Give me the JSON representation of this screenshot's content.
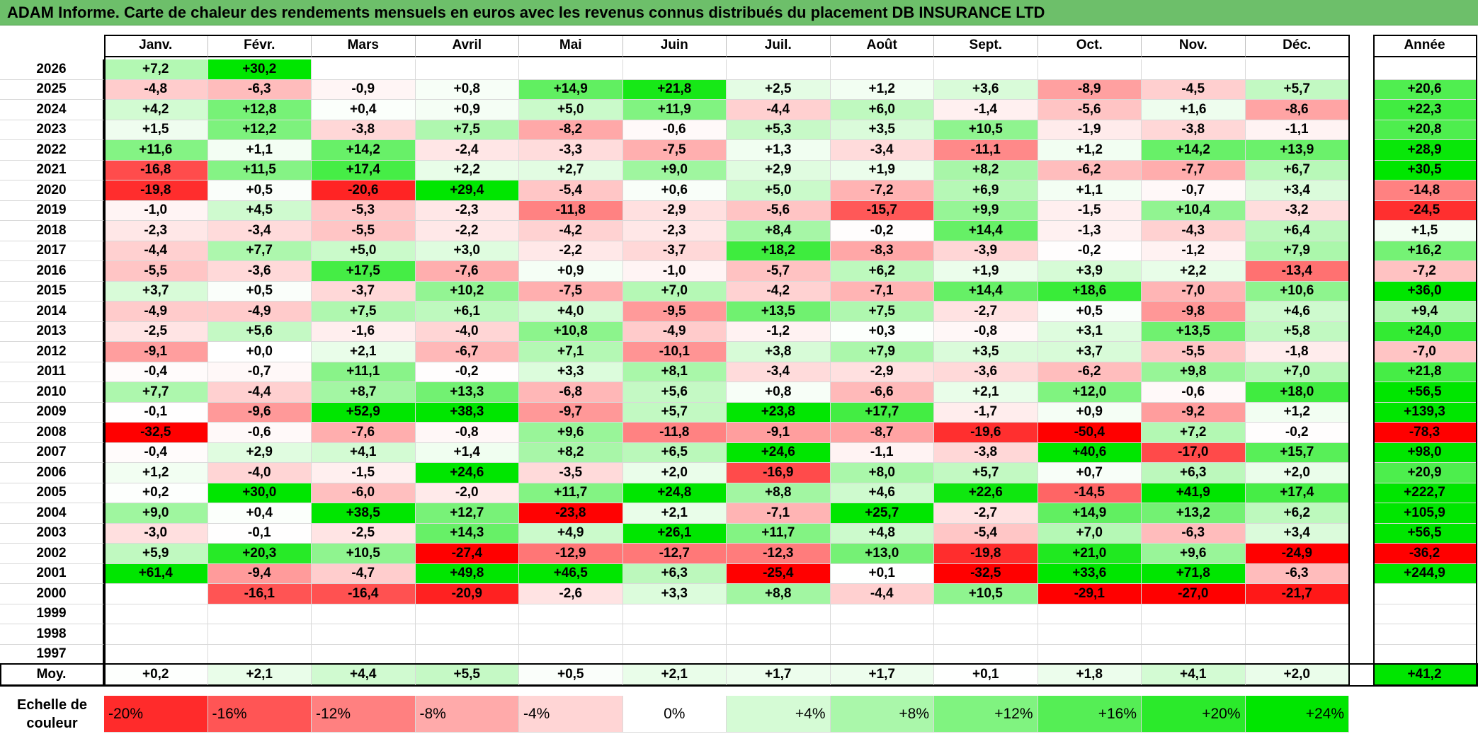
{
  "title": "ADAM Informe. Carte de chaleur des rendements mensuels en euros avec les revenus connus distribués du placement DB INSURANCE LTD",
  "chart_data": {
    "type": "heatmap",
    "months": [
      "Janv.",
      "Févr.",
      "Mars",
      "Avril",
      "Mai",
      "Juin",
      "Juil.",
      "Août",
      "Sept.",
      "Oct.",
      "Nov.",
      "Déc."
    ],
    "year_header": "Année",
    "average_label": "Moy.",
    "rows": [
      {
        "year": "2026",
        "values": [
          "+7,2",
          "+30,2",
          "",
          "",
          "",
          "",
          "",
          "",
          "",
          "",
          "",
          ""
        ],
        "annual": ""
      },
      {
        "year": "2025",
        "values": [
          "-4,8",
          "-6,3",
          "-0,9",
          "+0,8",
          "+14,9",
          "+21,8",
          "+2,5",
          "+1,2",
          "+3,6",
          "-8,9",
          "-4,5",
          "+5,7"
        ],
        "annual": "+20,6"
      },
      {
        "year": "2024",
        "values": [
          "+4,2",
          "+12,8",
          "+0,4",
          "+0,9",
          "+5,0",
          "+11,9",
          "-4,4",
          "+6,0",
          "-1,4",
          "-5,6",
          "+1,6",
          "-8,6"
        ],
        "annual": "+22,3"
      },
      {
        "year": "2023",
        "values": [
          "+1,5",
          "+12,2",
          "-3,8",
          "+7,5",
          "-8,2",
          "-0,6",
          "+5,3",
          "+3,5",
          "+10,5",
          "-1,9",
          "-3,8",
          "-1,1"
        ],
        "annual": "+20,8"
      },
      {
        "year": "2022",
        "values": [
          "+11,6",
          "+1,1",
          "+14,2",
          "-2,4",
          "-3,3",
          "-7,5",
          "+1,3",
          "-3,4",
          "-11,1",
          "+1,2",
          "+14,2",
          "+13,9"
        ],
        "annual": "+28,9"
      },
      {
        "year": "2021",
        "values": [
          "-16,8",
          "+11,5",
          "+17,4",
          "+2,2",
          "+2,7",
          "+9,0",
          "+2,9",
          "+1,9",
          "+8,2",
          "-6,2",
          "-7,7",
          "+6,7"
        ],
        "annual": "+30,5"
      },
      {
        "year": "2020",
        "values": [
          "-19,8",
          "+0,5",
          "-20,6",
          "+29,4",
          "-5,4",
          "+0,6",
          "+5,0",
          "-7,2",
          "+6,9",
          "+1,1",
          "-0,7",
          "+3,4"
        ],
        "annual": "-14,8"
      },
      {
        "year": "2019",
        "values": [
          "-1,0",
          "+4,5",
          "-5,3",
          "-2,3",
          "-11,8",
          "-2,9",
          "-5,6",
          "-15,7",
          "+9,9",
          "-1,5",
          "+10,4",
          "-3,2"
        ],
        "annual": "-24,5"
      },
      {
        "year": "2018",
        "values": [
          "-2,3",
          "-3,4",
          "-5,5",
          "-2,2",
          "-4,2",
          "-2,3",
          "+8,4",
          "-0,2",
          "+14,4",
          "-1,3",
          "-4,3",
          "+6,4"
        ],
        "annual": "+1,5"
      },
      {
        "year": "2017",
        "values": [
          "-4,4",
          "+7,7",
          "+5,0",
          "+3,0",
          "-2,2",
          "-3,7",
          "+18,2",
          "-8,3",
          "-3,9",
          "-0,2",
          "-1,2",
          "+7,9"
        ],
        "annual": "+16,2"
      },
      {
        "year": "2016",
        "values": [
          "-5,5",
          "-3,6",
          "+17,5",
          "-7,6",
          "+0,9",
          "-1,0",
          "-5,7",
          "+6,2",
          "+1,9",
          "+3,9",
          "+2,2",
          "-13,4"
        ],
        "annual": "-7,2"
      },
      {
        "year": "2015",
        "values": [
          "+3,7",
          "+0,5",
          "-3,7",
          "+10,2",
          "-7,5",
          "+7,0",
          "-4,2",
          "-7,1",
          "+14,4",
          "+18,6",
          "-7,0",
          "+10,6"
        ],
        "annual": "+36,0"
      },
      {
        "year": "2014",
        "values": [
          "-4,9",
          "-4,9",
          "+7,5",
          "+6,1",
          "+4,0",
          "-9,5",
          "+13,5",
          "+7,5",
          "-2,7",
          "+0,5",
          "-9,8",
          "+4,6"
        ],
        "annual": "+9,4"
      },
      {
        "year": "2013",
        "values": [
          "-2,5",
          "+5,6",
          "-1,6",
          "-4,0",
          "+10,8",
          "-4,9",
          "-1,2",
          "+0,3",
          "-0,8",
          "+3,1",
          "+13,5",
          "+5,8"
        ],
        "annual": "+24,0"
      },
      {
        "year": "2012",
        "values": [
          "-9,1",
          "+0,0",
          "+2,1",
          "-6,7",
          "+7,1",
          "-10,1",
          "+3,8",
          "+7,9",
          "+3,5",
          "+3,7",
          "-5,5",
          "-1,8"
        ],
        "annual": "-7,0"
      },
      {
        "year": "2011",
        "values": [
          "-0,4",
          "-0,7",
          "+11,1",
          "-0,2",
          "+3,3",
          "+8,1",
          "-3,4",
          "-2,9",
          "-3,6",
          "-6,2",
          "+9,8",
          "+7,0"
        ],
        "annual": "+21,8"
      },
      {
        "year": "2010",
        "values": [
          "+7,7",
          "-4,4",
          "+8,7",
          "+13,3",
          "-6,8",
          "+5,6",
          "+0,8",
          "-6,6",
          "+2,1",
          "+12,0",
          "-0,6",
          "+18,0"
        ],
        "annual": "+56,5"
      },
      {
        "year": "2009",
        "values": [
          "-0,1",
          "-9,6",
          "+52,9",
          "+38,3",
          "-9,7",
          "+5,7",
          "+23,8",
          "+17,7",
          "-1,7",
          "+0,9",
          "-9,2",
          "+1,2"
        ],
        "annual": "+139,3"
      },
      {
        "year": "2008",
        "values": [
          "-32,5",
          "-0,6",
          "-7,6",
          "-0,8",
          "+9,6",
          "-11,8",
          "-9,1",
          "-8,7",
          "-19,6",
          "-50,4",
          "+7,2",
          "-0,2"
        ],
        "annual": "-78,3"
      },
      {
        "year": "2007",
        "values": [
          "-0,4",
          "+2,9",
          "+4,1",
          "+1,4",
          "+8,2",
          "+6,5",
          "+24,6",
          "-1,1",
          "-3,8",
          "+40,6",
          "-17,0",
          "+15,7"
        ],
        "annual": "+98,0"
      },
      {
        "year": "2006",
        "values": [
          "+1,2",
          "-4,0",
          "-1,5",
          "+24,6",
          "-3,5",
          "+2,0",
          "-16,9",
          "+8,0",
          "+5,7",
          "+0,7",
          "+6,3",
          "+2,0"
        ],
        "annual": "+20,9"
      },
      {
        "year": "2005",
        "values": [
          "+0,2",
          "+30,0",
          "-6,0",
          "-2,0",
          "+11,7",
          "+24,8",
          "+8,8",
          "+4,6",
          "+22,6",
          "-14,5",
          "+41,9",
          "+17,4"
        ],
        "annual": "+222,7"
      },
      {
        "year": "2004",
        "values": [
          "+9,0",
          "+0,4",
          "+38,5",
          "+12,7",
          "-23,8",
          "+2,1",
          "-7,1",
          "+25,7",
          "-2,7",
          "+14,9",
          "+13,2",
          "+6,2"
        ],
        "annual": "+105,9"
      },
      {
        "year": "2003",
        "values": [
          "-3,0",
          "-0,1",
          "-2,5",
          "+14,3",
          "+4,9",
          "+26,1",
          "+11,7",
          "+4,8",
          "-5,4",
          "+7,0",
          "-6,3",
          "+3,4"
        ],
        "annual": "+56,5"
      },
      {
        "year": "2002",
        "values": [
          "+5,9",
          "+20,3",
          "+10,5",
          "-27,4",
          "-12,9",
          "-12,7",
          "-12,3",
          "+13,0",
          "-19,8",
          "+21,0",
          "+9,6",
          "-24,9"
        ],
        "annual": "-36,2"
      },
      {
        "year": "2001",
        "values": [
          "+61,4",
          "-9,4",
          "-4,7",
          "+49,8",
          "+46,5",
          "+6,3",
          "-25,4",
          "+0,1",
          "-32,5",
          "+33,6",
          "+71,8",
          "-6,3"
        ],
        "annual": "+244,9"
      },
      {
        "year": "2000",
        "values": [
          "",
          "-16,1",
          "-16,4",
          "-20,9",
          "-2,6",
          "+3,3",
          "+8,8",
          "-4,4",
          "+10,5",
          "-29,1",
          "-27,0",
          "-21,7"
        ],
        "annual": ""
      },
      {
        "year": "1999",
        "values": [
          "",
          "",
          "",
          "",
          "",
          "",
          "",
          "",
          "",
          "",
          "",
          ""
        ],
        "annual": ""
      },
      {
        "year": "1998",
        "values": [
          "",
          "",
          "",
          "",
          "",
          "",
          "",
          "",
          "",
          "",
          "",
          ""
        ],
        "annual": ""
      },
      {
        "year": "1997",
        "values": [
          "",
          "",
          "",
          "",
          "",
          "",
          "",
          "",
          "",
          "",
          "",
          ""
        ],
        "annual": ""
      }
    ],
    "averages": [
      "+0,2",
      "+2,1",
      "+4,4",
      "+5,5",
      "+0,5",
      "+2,1",
      "+1,7",
      "+1,7",
      "+0,1",
      "+1,8",
      "+4,1",
      "+2,0"
    ],
    "average_annual": "+41,2",
    "color_scale": {
      "label": "Echelle de\ncouleur",
      "stops": [
        "-20%",
        "-16%",
        "-12%",
        "-8%",
        "-4%",
        "0%",
        "+4%",
        "+8%",
        "+12%",
        "+16%",
        "+20%",
        "+24%"
      ],
      "negative_color": "#ff0000",
      "positive_color": "#00e600",
      "neutral_color": "#ffffff"
    }
  }
}
